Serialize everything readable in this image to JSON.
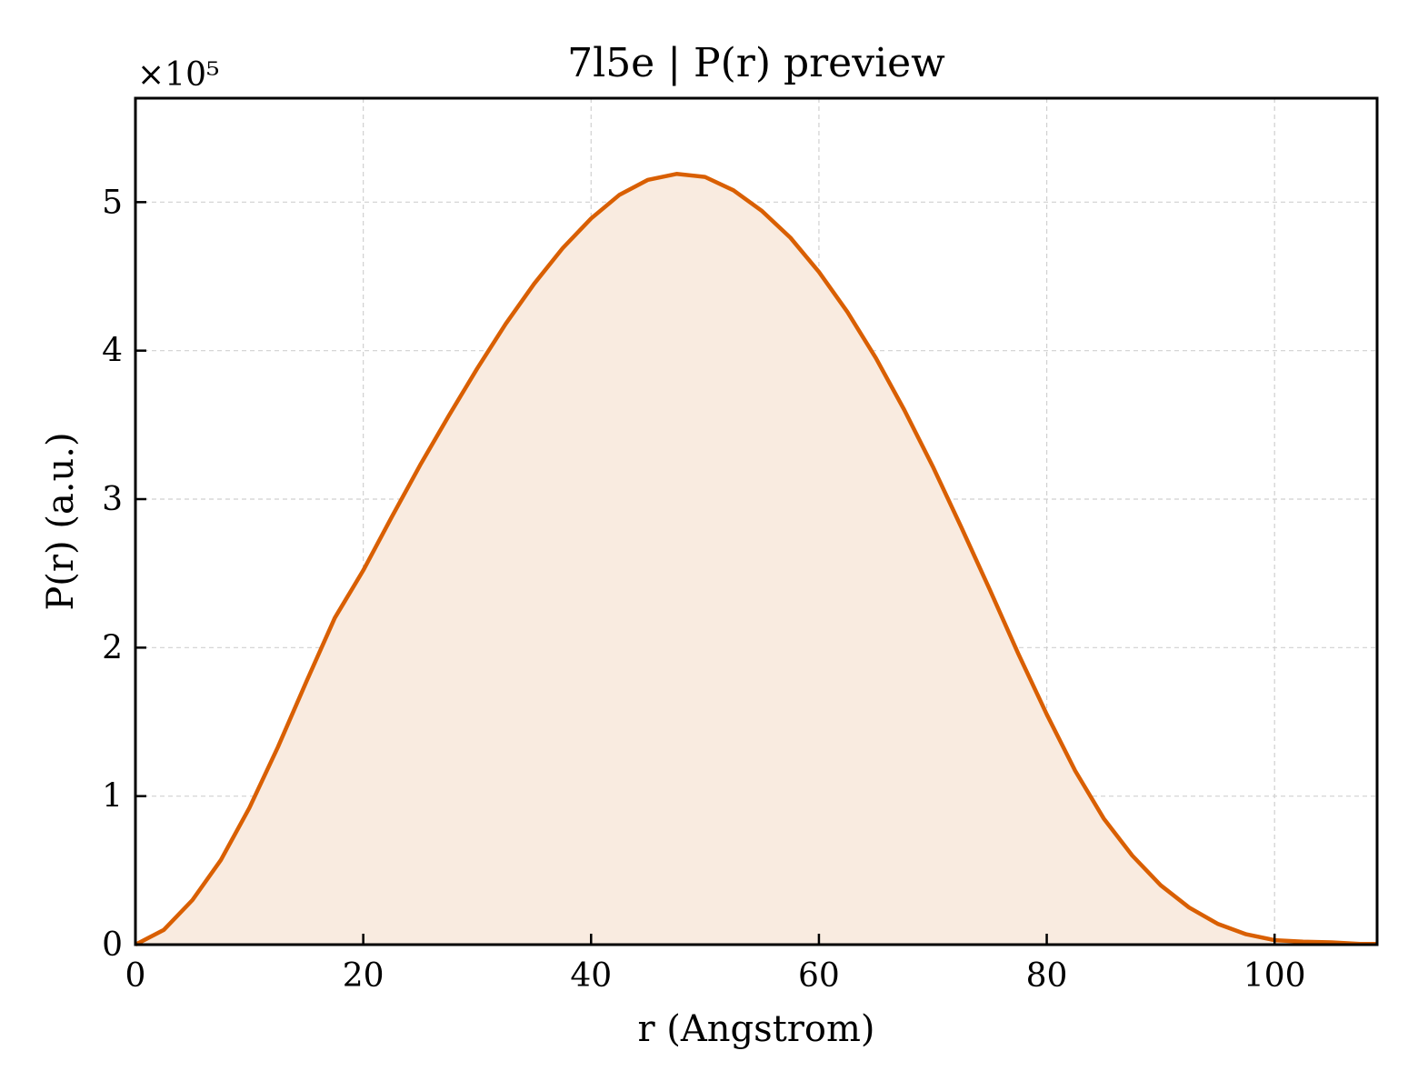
{
  "chart_data": {
    "type": "area",
    "title": "7l5e | P(r) preview",
    "xlabel": "r (Angstrom)",
    "ylabel": "P(r) (a.u.)",
    "y_offset_label": "×10⁵",
    "xlim": [
      0,
      109
    ],
    "ylim": [
      0,
      5.7
    ],
    "x_ticks": [
      0,
      20,
      40,
      60,
      80,
      100
    ],
    "x_tick_labels": [
      "0",
      "20",
      "40",
      "60",
      "80",
      "100"
    ],
    "y_ticks": [
      0,
      1,
      2,
      3,
      4,
      5
    ],
    "y_tick_labels": [
      "0",
      "1",
      "2",
      "3",
      "4",
      "5"
    ],
    "grid": true,
    "line_color": "#d95f02",
    "fill_color": "#f9ebe0",
    "series": [
      {
        "x": [
          0,
          2.5,
          5,
          7.5,
          10,
          12.5,
          15,
          17.5,
          20,
          22.5,
          25,
          27.5,
          30,
          32.5,
          35,
          37.5,
          40,
          42.5,
          45,
          47.5,
          50,
          52.5,
          55,
          57.5,
          60,
          62.5,
          65,
          67.5,
          70,
          72.5,
          75,
          77.5,
          80,
          82.5,
          85,
          87.5,
          90,
          92.5,
          95,
          97.5,
          100,
          102.5,
          105,
          107.5,
          109
        ],
        "values": [
          0,
          0.1,
          0.3,
          0.57,
          0.92,
          1.33,
          1.77,
          2.2,
          2.52,
          2.88,
          3.23,
          3.56,
          3.88,
          4.18,
          4.45,
          4.69,
          4.89,
          5.05,
          5.15,
          5.19,
          5.17,
          5.08,
          4.94,
          4.76,
          4.53,
          4.26,
          3.95,
          3.6,
          3.22,
          2.81,
          2.39,
          1.96,
          1.55,
          1.17,
          0.85,
          0.6,
          0.4,
          0.25,
          0.14,
          0.07,
          0.03,
          0.02,
          0.015,
          0.005,
          0.005
        ]
      }
    ]
  }
}
